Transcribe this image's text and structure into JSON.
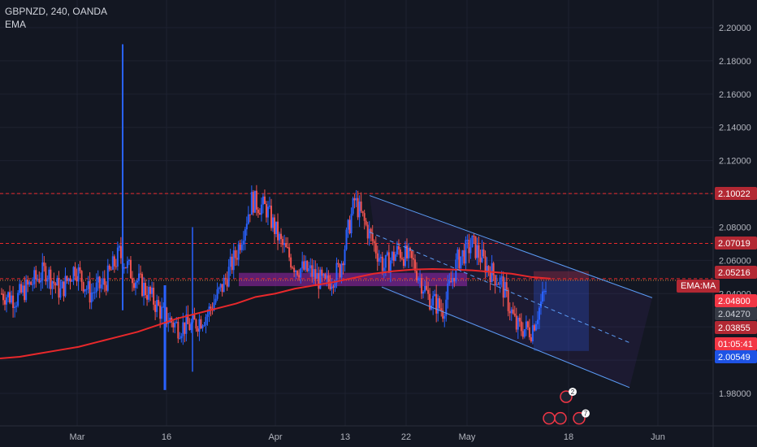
{
  "legend": {
    "title": "GBPNZD, 240, OANDA",
    "indicator": "EMA",
    "ema_tag": "EMA:MA"
  },
  "colors": {
    "background": "#131722",
    "bull": "#2962ff",
    "bear": "#ef5350",
    "ema": "#e8282b",
    "channel": "#5b9cf6",
    "level": "#e8282b"
  },
  "chart_data": {
    "type": "candlestick",
    "symbol": "GBPNZD",
    "timeframe": "240",
    "broker": "OANDA",
    "ylim": [
      1.962,
      2.215
    ],
    "y_ticks": [
      "2.20000",
      "2.18000",
      "2.16000",
      "2.14000",
      "2.12000",
      "2.10000",
      "2.08000",
      "2.06000",
      "2.04000",
      "2.02000",
      "2.00000",
      "1.98000"
    ],
    "x_ticks": [
      "Mar",
      "16",
      "Apr",
      "13",
      "22",
      "May",
      "18",
      "Jun"
    ],
    "price_tags": [
      {
        "text": "2.10022",
        "value": 2.10022,
        "kind": "level"
      },
      {
        "text": "2.07019",
        "value": 2.07019,
        "kind": "level"
      },
      {
        "text": "2.05216",
        "value": 2.05216,
        "kind": "level"
      },
      {
        "text": "2.04800",
        "value": 2.048,
        "kind": "last"
      },
      {
        "text": "2.04270",
        "value": 2.0427,
        "kind": "gray"
      },
      {
        "text": "2.03855",
        "value": 2.03855,
        "kind": "level"
      },
      {
        "text": "01:05:41",
        "value": 2.0345,
        "kind": "timer"
      },
      {
        "text": "2.00549",
        "value": 2.00549,
        "kind": "blue"
      }
    ],
    "horizontal_levels": [
      2.10022,
      2.07019,
      2.049
    ],
    "channel": {
      "upper": [
        [
          "Apr 14",
          2.099
        ],
        [
          "Jun 8",
          2.0375
        ]
      ],
      "lower": [
        [
          "Apr 6",
          2.0485
        ],
        [
          "Jun 8",
          1.9835
        ]
      ],
      "mid": [
        [
          "Apr 14",
          2.077
        ],
        [
          "Jun 8",
          2.0105
        ]
      ]
    },
    "zone": {
      "from": "Apr 1",
      "to": "May 1",
      "top": 2.0525,
      "bottom": 2.0445
    },
    "position_box": {
      "from": "May 14",
      "to": "May 18",
      "entry": 2.048,
      "stop": 2.0535,
      "target": 2.0055
    },
    "ema_series": [
      2.001,
      2.002,
      2.004,
      2.006,
      2.008,
      2.011,
      2.014,
      2.017,
      2.021,
      2.025,
      2.028,
      2.031,
      2.034,
      2.038,
      2.04,
      2.043,
      2.045,
      2.047,
      2.0495,
      2.052,
      2.0535,
      2.0545,
      2.0548,
      2.0545,
      2.054,
      2.053,
      2.052,
      2.05,
      2.049
    ],
    "price_series": [
      2.04,
      2.037,
      2.046,
      2.054,
      2.041,
      2.056,
      2.04,
      2.046,
      2.064,
      2.05,
      2.04,
      2.027,
      2.02,
      2.021,
      2.028,
      2.044,
      2.065,
      2.096,
      2.091,
      2.07,
      2.056,
      2.053,
      2.045,
      2.055,
      2.096,
      2.076,
      2.056,
      2.066,
      2.058,
      2.038,
      2.03,
      2.06,
      2.07,
      2.056,
      2.046,
      2.02,
      2.018,
      2.042
    ],
    "spike": {
      "date": "Mar 10",
      "high": 2.19,
      "low": 2.03
    },
    "event_markers": [
      "2",
      "7"
    ]
  }
}
